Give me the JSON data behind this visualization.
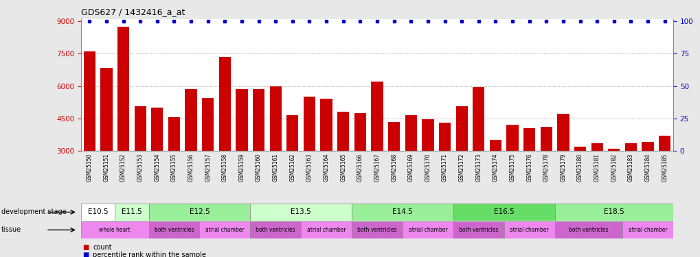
{
  "title": "GDS627 / 1432416_a_at",
  "samples": [
    "GSM25150",
    "GSM25151",
    "GSM25152",
    "GSM25153",
    "GSM25154",
    "GSM25155",
    "GSM25156",
    "GSM25157",
    "GSM25158",
    "GSM25159",
    "GSM25160",
    "GSM25161",
    "GSM25162",
    "GSM25163",
    "GSM25164",
    "GSM25165",
    "GSM25166",
    "GSM25167",
    "GSM25168",
    "GSM25169",
    "GSM25170",
    "GSM25171",
    "GSM25172",
    "GSM25173",
    "GSM25174",
    "GSM25175",
    "GSM25176",
    "GSM25178",
    "GSM25179",
    "GSM25180",
    "GSM25181",
    "GSM25182",
    "GSM25183",
    "GSM25184",
    "GSM25185"
  ],
  "counts": [
    7600,
    6850,
    8750,
    5050,
    5000,
    4550,
    5850,
    5450,
    7350,
    5850,
    5850,
    6000,
    4650,
    5500,
    5400,
    4800,
    4750,
    6200,
    4350,
    4650,
    4450,
    4300,
    5050,
    5950,
    3500,
    4200,
    4050,
    4100,
    4700,
    3200,
    3350,
    3100,
    3350,
    3400,
    3700
  ],
  "ymin": 3000,
  "ymax": 9000,
  "yticks": [
    3000,
    4500,
    6000,
    7500,
    9000
  ],
  "right_yticks": [
    0,
    25,
    50,
    75,
    100
  ],
  "bar_color": "#cc0000",
  "dot_color": "#0000cc",
  "development_stages": [
    {
      "label": "E10.5",
      "start": 0,
      "end": 2,
      "color": "#ffffff"
    },
    {
      "label": "E11.5",
      "start": 2,
      "end": 4,
      "color": "#ccffcc"
    },
    {
      "label": "E12.5",
      "start": 4,
      "end": 10,
      "color": "#99ee99"
    },
    {
      "label": "E13.5",
      "start": 10,
      "end": 16,
      "color": "#ccffcc"
    },
    {
      "label": "E14.5",
      "start": 16,
      "end": 22,
      "color": "#99ee99"
    },
    {
      "label": "E16.5",
      "start": 22,
      "end": 28,
      "color": "#66dd66"
    },
    {
      "label": "E18.5",
      "start": 28,
      "end": 35,
      "color": "#99ee99"
    }
  ],
  "tissues": [
    {
      "label": "whole heart",
      "start": 0,
      "end": 4,
      "color": "#ee88ee"
    },
    {
      "label": "both ventricles",
      "start": 4,
      "end": 7,
      "color": "#cc66cc"
    },
    {
      "label": "atrial chamber",
      "start": 7,
      "end": 10,
      "color": "#ee88ee"
    },
    {
      "label": "both ventricles",
      "start": 10,
      "end": 13,
      "color": "#cc66cc"
    },
    {
      "label": "atrial chamber",
      "start": 13,
      "end": 16,
      "color": "#ee88ee"
    },
    {
      "label": "both ventricles",
      "start": 16,
      "end": 19,
      "color": "#cc66cc"
    },
    {
      "label": "atrial chamber",
      "start": 19,
      "end": 22,
      "color": "#ee88ee"
    },
    {
      "label": "both ventricles",
      "start": 22,
      "end": 25,
      "color": "#cc66cc"
    },
    {
      "label": "atrial chamber",
      "start": 25,
      "end": 28,
      "color": "#ee88ee"
    },
    {
      "label": "both ventricles",
      "start": 28,
      "end": 32,
      "color": "#cc66cc"
    },
    {
      "label": "atrial chamber",
      "start": 32,
      "end": 35,
      "color": "#ee88ee"
    }
  ],
  "left_labels": [
    "development stage",
    "tissue"
  ],
  "legend_items": [
    {
      "label": "count",
      "color": "#cc0000"
    },
    {
      "label": "percentile rank within the sample",
      "color": "#0000cc"
    }
  ],
  "grid_color": "#888888",
  "bg_color": "#e8e8e8",
  "plot_bg": "#ffffff"
}
